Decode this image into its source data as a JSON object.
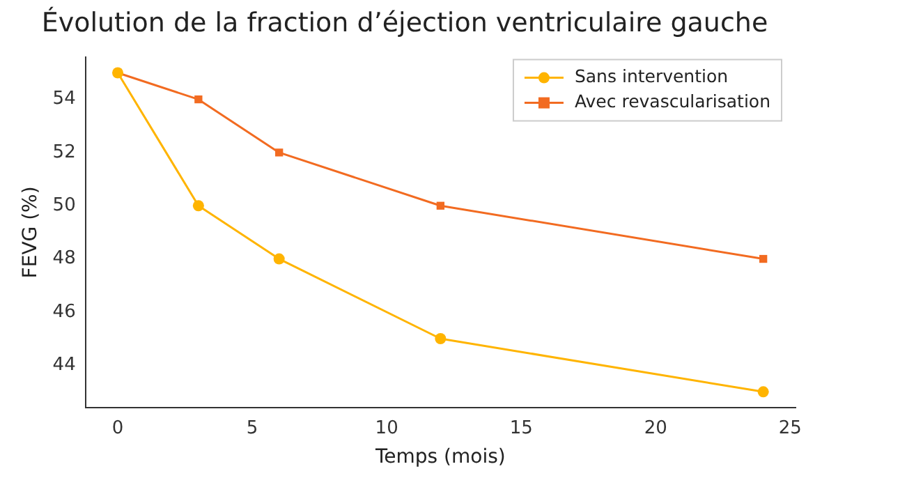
{
  "chart_data": {
    "type": "line",
    "title": "Évolution de la fraction d’éjection ventriculaire gauche",
    "xlabel": "Temps (mois)",
    "ylabel": "FEVG (%)",
    "x": [
      0,
      3,
      6,
      12,
      24
    ],
    "series": [
      {
        "name": "Sans intervention",
        "color": "#ffb400",
        "values": [
          55,
          50,
          48,
          45,
          43
        ],
        "marker": "circle"
      },
      {
        "name": "Avec revascularisation",
        "color": "#f26b21",
        "values": [
          55,
          54,
          52,
          50,
          48
        ],
        "marker": "square"
      }
    ],
    "xlim": [
      -1.2,
      25.2
    ],
    "xticks": [
      0,
      5,
      10,
      15,
      20,
      25
    ],
    "ylim": [
      42.4,
      55.6
    ],
    "yticks": [
      44,
      46,
      48,
      50,
      52,
      54
    ],
    "grid": false,
    "legend": "top right",
    "line_style": "solid"
  }
}
